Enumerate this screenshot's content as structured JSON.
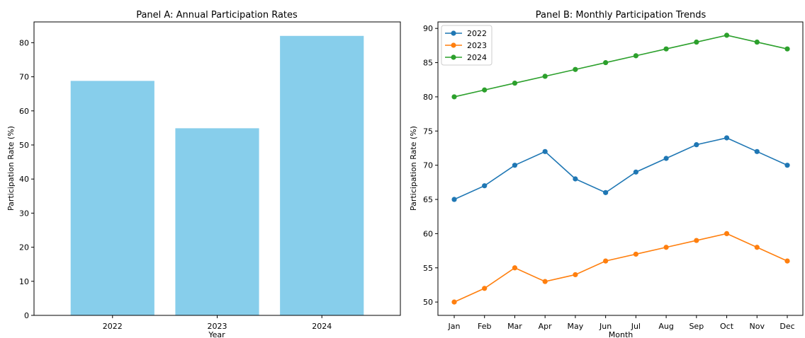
{
  "chart_data": [
    {
      "type": "bar",
      "title": "Panel A: Annual Participation Rates",
      "xlabel": "Year",
      "ylabel": "Participation Rate (%)",
      "categories": [
        "2022",
        "2023",
        "2024"
      ],
      "values": [
        68.8,
        54.9,
        82.0
      ],
      "ylim": [
        0,
        86.1
      ],
      "yticks": [
        0,
        10,
        20,
        30,
        40,
        50,
        60,
        70,
        80
      ],
      "grid": false,
      "colors": {
        "bar": "#87ceeb"
      }
    },
    {
      "type": "line",
      "title": "Panel B: Monthly Participation Trends",
      "xlabel": "Month",
      "ylabel": "Participation Rate (%)",
      "categories": [
        "Jan",
        "Feb",
        "Mar",
        "Apr",
        "May",
        "Jun",
        "Jul",
        "Aug",
        "Sep",
        "Oct",
        "Nov",
        "Dec"
      ],
      "series": [
        {
          "name": "2022",
          "color": "#1f77b4",
          "values": [
            65,
            67,
            70,
            72,
            68,
            66,
            69,
            71,
            73,
            74,
            72,
            70
          ]
        },
        {
          "name": "2023",
          "color": "#ff7f0e",
          "values": [
            50,
            52,
            55,
            53,
            54,
            56,
            57,
            58,
            59,
            60,
            58,
            56
          ]
        },
        {
          "name": "2024",
          "color": "#2ca02c",
          "values": [
            80,
            81,
            82,
            83,
            84,
            85,
            86,
            87,
            88,
            89,
            88,
            87
          ]
        }
      ],
      "ylim": [
        48.05,
        90.95
      ],
      "yticks": [
        50,
        55,
        60,
        65,
        70,
        75,
        80,
        85,
        90
      ],
      "grid": false,
      "legend": "top-left",
      "marker": "circle"
    }
  ]
}
